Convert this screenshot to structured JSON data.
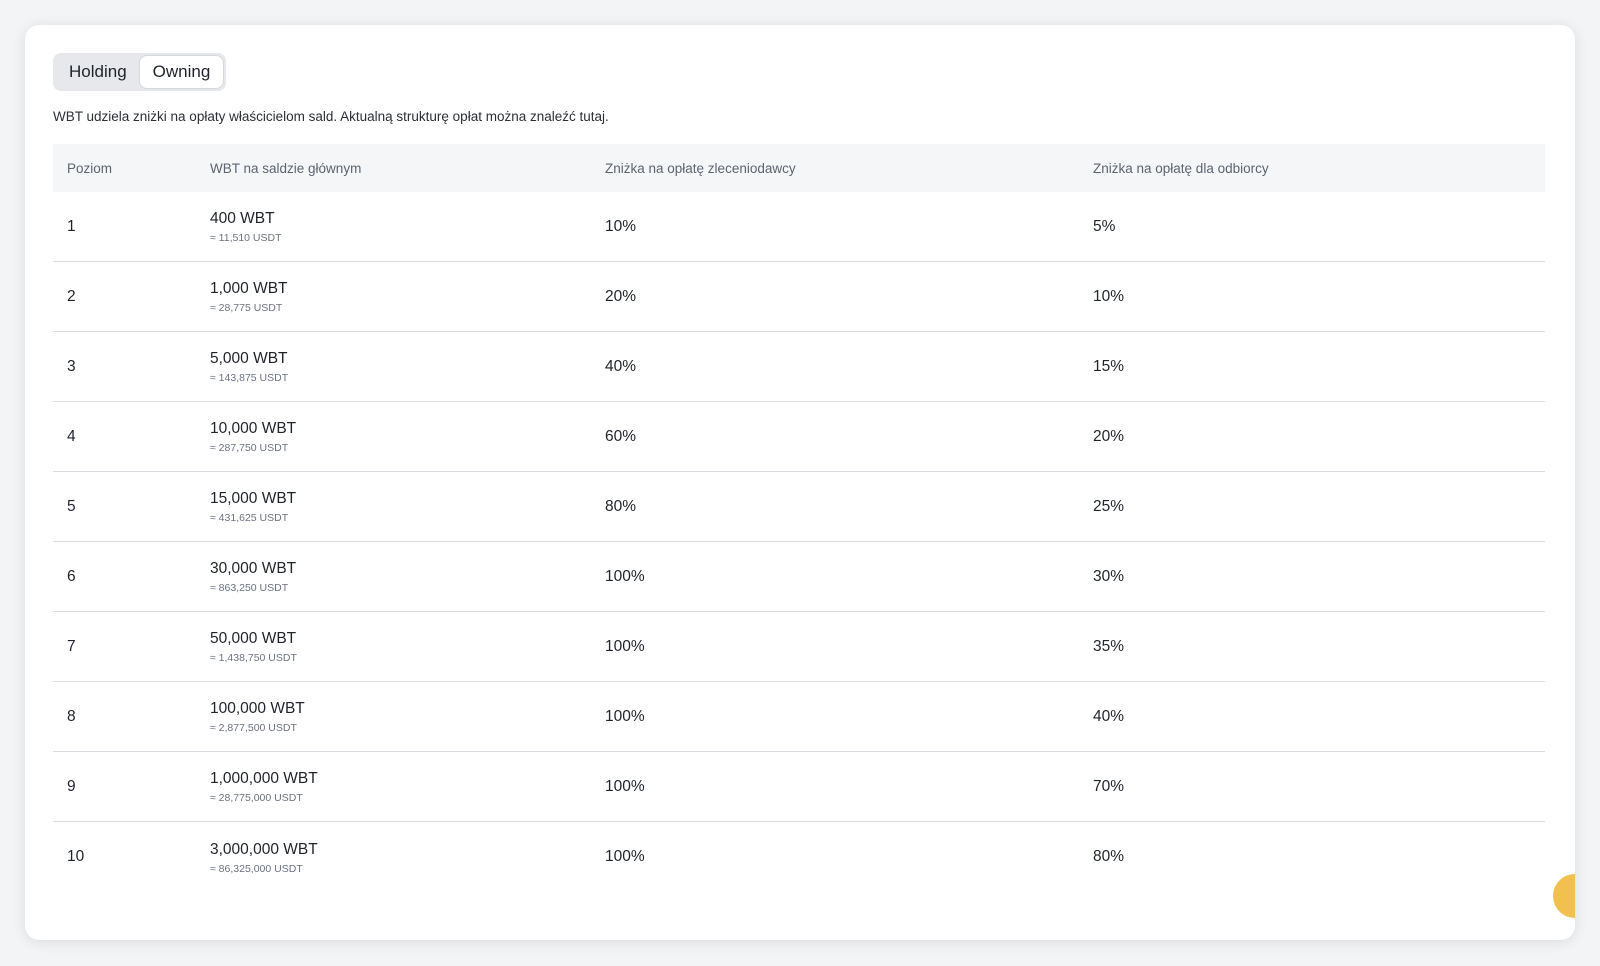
{
  "tabs": [
    {
      "label": "Holding",
      "active": false
    },
    {
      "label": "Owning",
      "active": true
    }
  ],
  "description": {
    "text": "WBT udziela zniżki na opłaty właścicielom sald. Aktualną strukturę opłat można znaleźć ",
    "link": "tutaj",
    "suffix": "."
  },
  "table": {
    "headers": [
      "Poziom",
      "WBT na saldzie głównym",
      "Zniżka na opłatę zleceniodawcy",
      "Zniżka na opłatę dla odbiorcy"
    ],
    "rows": [
      {
        "level": "1",
        "amount": "400 WBT",
        "usdt": "≈ 11,510 USDT",
        "maker": "10%",
        "taker": "5%"
      },
      {
        "level": "2",
        "amount": "1,000 WBT",
        "usdt": "≈ 28,775 USDT",
        "maker": "20%",
        "taker": "10%"
      },
      {
        "level": "3",
        "amount": "5,000 WBT",
        "usdt": "≈ 143,875 USDT",
        "maker": "40%",
        "taker": "15%"
      },
      {
        "level": "4",
        "amount": "10,000 WBT",
        "usdt": "≈ 287,750 USDT",
        "maker": "60%",
        "taker": "20%"
      },
      {
        "level": "5",
        "amount": "15,000 WBT",
        "usdt": "≈ 431,625 USDT",
        "maker": "80%",
        "taker": "25%"
      },
      {
        "level": "6",
        "amount": "30,000 WBT",
        "usdt": "≈ 863,250 USDT",
        "maker": "100%",
        "taker": "30%"
      },
      {
        "level": "7",
        "amount": "50,000 WBT",
        "usdt": "≈ 1,438,750 USDT",
        "maker": "100%",
        "taker": "35%"
      },
      {
        "level": "8",
        "amount": "100,000 WBT",
        "usdt": "≈ 2,877,500 USDT",
        "maker": "100%",
        "taker": "40%"
      },
      {
        "level": "9",
        "amount": "1,000,000 WBT",
        "usdt": "≈ 28,775,000 USDT",
        "maker": "100%",
        "taker": "70%"
      },
      {
        "level": "10",
        "amount": "3,000,000 WBT",
        "usdt": "≈ 86,325,000 USDT",
        "maker": "100%",
        "taker": "80%"
      }
    ]
  },
  "colors": {
    "accent": "#f2c04f",
    "header_bg": "#f5f6f8",
    "tab_bg": "#e6e8ec"
  }
}
